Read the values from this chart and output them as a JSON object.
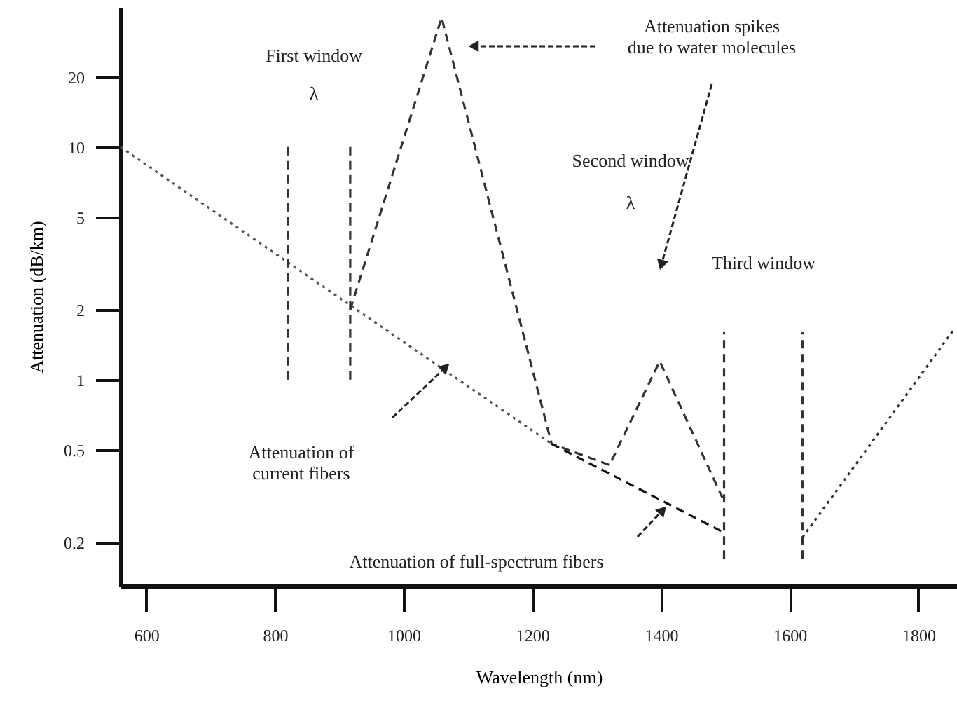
{
  "chart_data": {
    "type": "line",
    "xlabel": "Wavelength (nm)",
    "ylabel": "Attenuation (dB/km)",
    "xlim": [
      560,
      1860
    ],
    "xticks": [
      600,
      800,
      1000,
      1200,
      1400,
      1600,
      1800
    ],
    "ylim": [
      0.13,
      40
    ],
    "yticks": [
      0.2,
      0.5,
      1,
      2,
      5,
      10,
      20
    ],
    "log": true,
    "grid": false,
    "series": [
      {
        "color": "#555555",
        "line_style": "dotted",
        "x": [
          560,
          1230
        ],
        "values": [
          10,
          0.53
        ]
      },
      {
        "color": "#333333",
        "line_style": "dashed",
        "x": [
          917,
          1059,
          1230,
          1320,
          1398,
          1498
        ],
        "values": [
          2,
          36,
          0.53,
          0.43,
          1.2,
          0.3
        ]
      },
      {
        "color": "#111111",
        "line_style": "dashed",
        "x": [
          1230,
          1498
        ],
        "values": [
          0.53,
          0.22
        ]
      },
      {
        "color": "#333333",
        "line_style": "dotted",
        "x": [
          1620,
          1857
        ],
        "values": [
          0.21,
          1.67
        ]
      },
      {
        "color": "#333333",
        "line_style": "dashed",
        "x": [
          820,
          820
        ],
        "values": [
          1,
          10
        ]
      },
      {
        "color": "#333333",
        "line_style": "dashed",
        "x": [
          917,
          917
        ],
        "values": [
          1,
          10
        ]
      },
      {
        "color": "#333333",
        "line_style": "dashed",
        "x": [
          1498,
          1498
        ],
        "values": [
          0.17,
          1.6
        ]
      },
      {
        "color": "#333333",
        "line_style": "dashed",
        "x": [
          1620,
          1620
        ],
        "values": [
          0.17,
          1.6
        ]
      }
    ],
    "annotations": [
      "First window",
      "λ",
      "Attenuation spikes\ndue to water molecules",
      "Second window",
      "λ",
      "Third window",
      "Attenuation of\ncurrent fibers",
      "Attenuation of full-spectrum fibers"
    ]
  }
}
